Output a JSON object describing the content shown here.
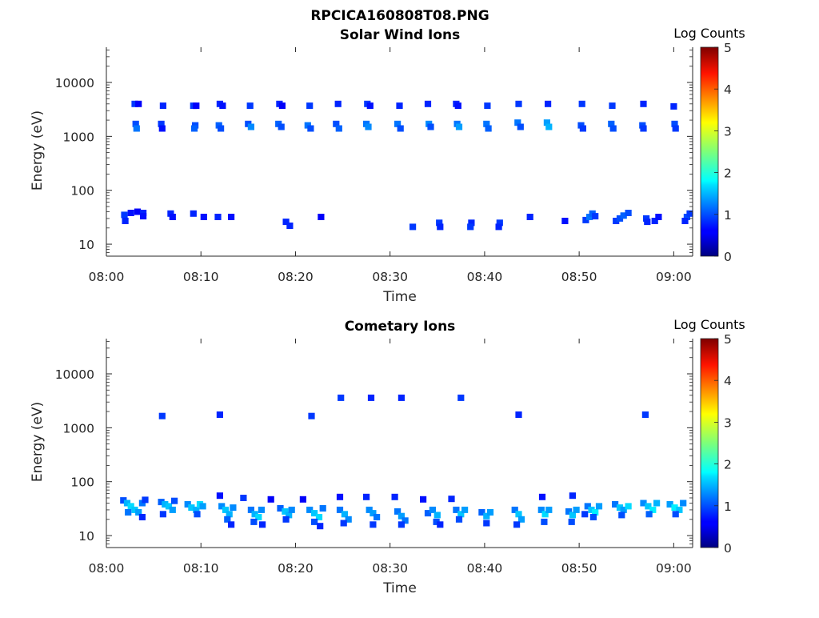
{
  "figure_title": "RPCICA160808T08.PNG",
  "chart_data": [
    {
      "type": "heatmap",
      "title": "Solar Wind Ions",
      "xlabel": "Time",
      "ylabel": "Energy (eV)",
      "x_ticks": [
        "08:00",
        "08:10",
        "08:20",
        "08:30",
        "08:40",
        "08:50",
        "09:00"
      ],
      "x_range_minutes": [
        0,
        62
      ],
      "y_scale": "log",
      "y_range": [
        6,
        45000
      ],
      "y_ticks": [
        10,
        100,
        1000,
        10000
      ],
      "colorbar": {
        "label": "Log Counts",
        "range": [
          0,
          5
        ],
        "ticks": [
          0,
          1,
          2,
          3,
          4,
          5
        ],
        "colormap": "jet"
      },
      "pixels": [
        [
          3.0,
          4000,
          0.9
        ],
        [
          3.4,
          4000,
          0.6
        ],
        [
          3.1,
          1700,
          1.0
        ],
        [
          3.2,
          1400,
          1.2
        ],
        [
          6.0,
          3700,
          0.8
        ],
        [
          5.8,
          1700,
          0.9
        ],
        [
          5.9,
          1400,
          0.7
        ],
        [
          9.2,
          3700,
          0.9
        ],
        [
          9.5,
          3700,
          0.6
        ],
        [
          9.4,
          1600,
          1.0
        ],
        [
          9.3,
          1400,
          1.1
        ],
        [
          12.0,
          4000,
          0.8
        ],
        [
          12.3,
          3700,
          0.7
        ],
        [
          11.9,
          1600,
          1.1
        ],
        [
          12.1,
          1400,
          1.0
        ],
        [
          15.2,
          3700,
          0.9
        ],
        [
          15.0,
          1700,
          1.0
        ],
        [
          15.3,
          1500,
          1.3
        ],
        [
          18.3,
          4000,
          0.8
        ],
        [
          18.6,
          3700,
          0.6
        ],
        [
          18.2,
          1700,
          1.1
        ],
        [
          18.5,
          1500,
          1.0
        ],
        [
          21.5,
          3700,
          0.9
        ],
        [
          21.3,
          1600,
          1.2
        ],
        [
          21.6,
          1400,
          1.0
        ],
        [
          24.5,
          4000,
          0.8
        ],
        [
          24.3,
          1700,
          1.0
        ],
        [
          24.6,
          1400,
          1.1
        ],
        [
          27.6,
          4000,
          0.9
        ],
        [
          27.9,
          3700,
          0.7
        ],
        [
          27.5,
          1700,
          1.2
        ],
        [
          27.7,
          1500,
          1.3
        ],
        [
          31.0,
          3700,
          0.8
        ],
        [
          30.8,
          1700,
          1.2
        ],
        [
          31.1,
          1400,
          1.0
        ],
        [
          34.0,
          4000,
          0.8
        ],
        [
          34.1,
          1700,
          1.3
        ],
        [
          34.3,
          1500,
          1.0
        ],
        [
          37.0,
          4000,
          0.8
        ],
        [
          37.2,
          3700,
          0.7
        ],
        [
          37.1,
          1700,
          1.2
        ],
        [
          37.3,
          1500,
          1.4
        ],
        [
          40.3,
          3700,
          0.9
        ],
        [
          40.2,
          1700,
          1.2
        ],
        [
          40.4,
          1400,
          1.1
        ],
        [
          43.6,
          4000,
          0.9
        ],
        [
          43.5,
          1800,
          1.2
        ],
        [
          43.8,
          1500,
          1.0
        ],
        [
          46.7,
          4000,
          0.8
        ],
        [
          46.6,
          1800,
          1.4
        ],
        [
          46.8,
          1500,
          1.5
        ],
        [
          50.3,
          4000,
          0.9
        ],
        [
          50.2,
          1600,
          1.0
        ],
        [
          50.4,
          1400,
          0.9
        ],
        [
          53.5,
          3700,
          0.9
        ],
        [
          53.4,
          1700,
          1.1
        ],
        [
          53.6,
          1400,
          1.0
        ],
        [
          56.8,
          4000,
          0.8
        ],
        [
          56.7,
          1600,
          1.0
        ],
        [
          56.8,
          1400,
          0.9
        ],
        [
          60.0,
          3600,
          0.8
        ],
        [
          60.1,
          1700,
          1.0
        ],
        [
          60.2,
          1400,
          0.9
        ],
        [
          1.9,
          35,
          0.9
        ],
        [
          2.0,
          27,
          0.8
        ],
        [
          2.6,
          38,
          0.7
        ],
        [
          3.3,
          40,
          0.6
        ],
        [
          3.9,
          38,
          0.8
        ],
        [
          3.9,
          33,
          0.7
        ],
        [
          6.8,
          37,
          0.8
        ],
        [
          7.0,
          32,
          0.7
        ],
        [
          9.2,
          37,
          0.8
        ],
        [
          10.3,
          32,
          0.7
        ],
        [
          11.8,
          32,
          0.8
        ],
        [
          13.2,
          32,
          0.7
        ],
        [
          19.0,
          26,
          0.8
        ],
        [
          19.4,
          22,
          0.8
        ],
        [
          22.7,
          32,
          0.6
        ],
        [
          32.4,
          21,
          0.9
        ],
        [
          35.2,
          25,
          0.9
        ],
        [
          35.3,
          21,
          0.8
        ],
        [
          38.6,
          25,
          0.8
        ],
        [
          38.5,
          21,
          0.9
        ],
        [
          41.6,
          25,
          0.9
        ],
        [
          41.5,
          21,
          0.8
        ],
        [
          44.8,
          32,
          0.8
        ],
        [
          48.5,
          27,
          0.7
        ],
        [
          50.7,
          28,
          0.9
        ],
        [
          51.1,
          32,
          1.2
        ],
        [
          51.4,
          37,
          1.1
        ],
        [
          51.7,
          33,
          0.9
        ],
        [
          53.9,
          27,
          0.9
        ],
        [
          54.3,
          30,
          1.0
        ],
        [
          54.7,
          34,
          1.1
        ],
        [
          55.2,
          38,
          1.0
        ],
        [
          57.1,
          30,
          0.9
        ],
        [
          57.2,
          26,
          0.8
        ],
        [
          58.0,
          27,
          0.8
        ],
        [
          58.4,
          32,
          0.7
        ],
        [
          61.4,
          32,
          1.0
        ],
        [
          61.2,
          27,
          0.8
        ],
        [
          61.7,
          37,
          0.9
        ]
      ]
    },
    {
      "type": "heatmap",
      "title": "Cometary Ions",
      "xlabel": "Time",
      "ylabel": "Energy (eV)",
      "x_ticks": [
        "08:00",
        "08:10",
        "08:20",
        "08:30",
        "08:40",
        "08:50",
        "09:00"
      ],
      "x_range_minutes": [
        0,
        62
      ],
      "y_scale": "log",
      "y_range": [
        6,
        45000
      ],
      "y_ticks": [
        10,
        100,
        1000,
        10000
      ],
      "colorbar": {
        "label": "Log Counts",
        "range": [
          0,
          5
        ],
        "ticks": [
          0,
          1,
          2,
          3,
          4,
          5
        ],
        "colormap": "jet"
      },
      "pixels": [
        [
          5.9,
          1650,
          0.9
        ],
        [
          12.0,
          1750,
          0.8
        ],
        [
          21.7,
          1650,
          0.9
        ],
        [
          24.8,
          3600,
          0.9
        ],
        [
          28.0,
          3600,
          0.8
        ],
        [
          31.2,
          3600,
          0.8
        ],
        [
          37.5,
          3600,
          0.9
        ],
        [
          43.6,
          1750,
          0.8
        ],
        [
          57.0,
          1750,
          0.9
        ],
        [
          12.0,
          55,
          0.7
        ],
        [
          14.5,
          50,
          0.9
        ],
        [
          17.4,
          47,
          0.6
        ],
        [
          20.8,
          47,
          0.6
        ],
        [
          24.7,
          52,
          0.7
        ],
        [
          27.5,
          52,
          0.8
        ],
        [
          30.5,
          52,
          0.8
        ],
        [
          33.5,
          47,
          0.7
        ],
        [
          36.5,
          48,
          0.8
        ],
        [
          46.1,
          52,
          0.7
        ],
        [
          49.3,
          55,
          0.8
        ],
        [
          1.8,
          45,
          1.0
        ],
        [
          2.2,
          40,
          1.5
        ],
        [
          2.6,
          35,
          1.7
        ],
        [
          3.0,
          30,
          1.6
        ],
        [
          3.4,
          27,
          1.4
        ],
        [
          3.8,
          40,
          1.2
        ],
        [
          4.1,
          46,
          0.9
        ],
        [
          2.3,
          27,
          1.2
        ],
        [
          3.8,
          22,
          0.8
        ],
        [
          5.8,
          42,
          1.1
        ],
        [
          6.2,
          38,
          1.5
        ],
        [
          6.6,
          35,
          1.6
        ],
        [
          7.0,
          30,
          1.4
        ],
        [
          6.0,
          25,
          0.9
        ],
        [
          7.2,
          44,
          1.0
        ],
        [
          8.6,
          38,
          1.3
        ],
        [
          9.0,
          33,
          1.6
        ],
        [
          9.5,
          30,
          1.5
        ],
        [
          9.9,
          38,
          1.7
        ],
        [
          10.2,
          35,
          1.4
        ],
        [
          9.6,
          25,
          1.0
        ],
        [
          12.2,
          35,
          1.3
        ],
        [
          12.6,
          30,
          1.6
        ],
        [
          13.0,
          25,
          1.5
        ],
        [
          13.4,
          33,
          1.3
        ],
        [
          12.8,
          20,
          1.1
        ],
        [
          13.2,
          16,
          0.8
        ],
        [
          15.3,
          30,
          1.2
        ],
        [
          15.7,
          25,
          1.5
        ],
        [
          16.1,
          22,
          1.7
        ],
        [
          16.4,
          30,
          1.3
        ],
        [
          15.6,
          18,
          1.0
        ],
        [
          16.5,
          16,
          0.8
        ],
        [
          18.4,
          32,
          1.1
        ],
        [
          18.9,
          28,
          1.6
        ],
        [
          19.3,
          24,
          1.5
        ],
        [
          19.6,
          30,
          1.3
        ],
        [
          19.0,
          20,
          0.9
        ],
        [
          21.5,
          30,
          1.3
        ],
        [
          22.0,
          26,
          1.6
        ],
        [
          22.5,
          22,
          1.7
        ],
        [
          22.9,
          32,
          1.2
        ],
        [
          22.0,
          18,
          1.0
        ],
        [
          22.6,
          15,
          0.8
        ],
        [
          24.7,
          30,
          1.2
        ],
        [
          25.2,
          25,
          1.5
        ],
        [
          25.6,
          20,
          1.3
        ],
        [
          25.1,
          17,
          0.9
        ],
        [
          27.8,
          30,
          1.3
        ],
        [
          28.2,
          26,
          1.4
        ],
        [
          28.6,
          22,
          1.2
        ],
        [
          28.2,
          16,
          0.9
        ],
        [
          30.8,
          28,
          1.2
        ],
        [
          31.2,
          23,
          1.4
        ],
        [
          31.6,
          19,
          1.2
        ],
        [
          31.2,
          16,
          0.9
        ],
        [
          34.0,
          26,
          1.1
        ],
        [
          34.5,
          30,
          1.3
        ],
        [
          35.0,
          24,
          1.5
        ],
        [
          34.9,
          18,
          1.0
        ],
        [
          35.3,
          16,
          0.8
        ],
        [
          37.0,
          30,
          1.2
        ],
        [
          37.5,
          25,
          1.6
        ],
        [
          37.9,
          30,
          1.4
        ],
        [
          37.3,
          20,
          1.0
        ],
        [
          39.7,
          27,
          1.1
        ],
        [
          40.2,
          23,
          1.5
        ],
        [
          40.6,
          27,
          1.4
        ],
        [
          40.2,
          17,
          0.9
        ],
        [
          43.2,
          30,
          1.2
        ],
        [
          43.6,
          25,
          1.6
        ],
        [
          43.9,
          20,
          1.4
        ],
        [
          43.4,
          16,
          0.9
        ],
        [
          46.0,
          30,
          1.3
        ],
        [
          46.4,
          25,
          1.7
        ],
        [
          46.8,
          30,
          1.4
        ],
        [
          46.3,
          18,
          1.0
        ],
        [
          48.9,
          28,
          1.2
        ],
        [
          49.3,
          24,
          1.6
        ],
        [
          49.7,
          30,
          1.4
        ],
        [
          49.2,
          18,
          1.0
        ],
        [
          50.9,
          35,
          1.2
        ],
        [
          51.3,
          30,
          1.6
        ],
        [
          51.7,
          27,
          1.8
        ],
        [
          52.1,
          35,
          1.4
        ],
        [
          51.5,
          22,
          1.0
        ],
        [
          50.6,
          25,
          0.9
        ],
        [
          53.8,
          38,
          1.2
        ],
        [
          54.3,
          33,
          1.6
        ],
        [
          54.7,
          30,
          1.4
        ],
        [
          55.2,
          35,
          1.7
        ],
        [
          54.5,
          24,
          1.0
        ],
        [
          56.8,
          40,
          1.3
        ],
        [
          57.3,
          35,
          1.6
        ],
        [
          57.8,
          30,
          1.8
        ],
        [
          58.2,
          40,
          1.5
        ],
        [
          57.4,
          25,
          1.1
        ],
        [
          59.6,
          38,
          1.4
        ],
        [
          60.1,
          33,
          1.8
        ],
        [
          60.6,
          30,
          1.6
        ],
        [
          61.0,
          40,
          1.3
        ],
        [
          60.2,
          25,
          1.0
        ]
      ]
    }
  ]
}
